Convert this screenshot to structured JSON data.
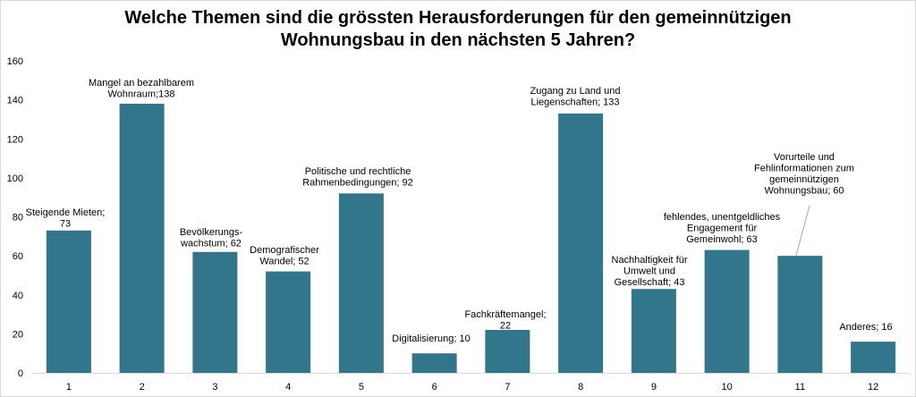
{
  "chart_data": {
    "type": "bar",
    "title": "Welche Themen sind die grössten Herausforderungen für den gemeinnützigen\nWohnungsbau in den nächsten 5 Jahren?",
    "categories": [
      "1",
      "2",
      "3",
      "4",
      "5",
      "6",
      "7",
      "8",
      "9",
      "10",
      "11",
      "12"
    ],
    "values": [
      73,
      138,
      62,
      52,
      92,
      10,
      22,
      133,
      43,
      63,
      60,
      16
    ],
    "data_labels": [
      [
        "Steigende Mieten;",
        "73"
      ],
      [
        "Mangel an bezahlbarem",
        "Wohnraum;138"
      ],
      [
        "Bevölkerungs-",
        "wachstum; 62"
      ],
      [
        "Demografischer",
        "Wandel; 52"
      ],
      [
        "Politische und rechtliche",
        "Rahmenbedingungen; 92"
      ],
      [
        "Digitalisierung;  10"
      ],
      [
        "Fachkräftemangel;",
        "22"
      ],
      [
        "Zugang zu Land und",
        "Liegenschaften; 133"
      ],
      [
        "Nachhaltigkeit für",
        "Umwelt und",
        "Gesellschaft; 43"
      ],
      [
        "fehlendes, unentgeldliches",
        "Engagement für",
        "Gemeinwohl; 63"
      ],
      [
        "Vorurteile und",
        "Fehlinformationen zum",
        "gemeinnützigen",
        "Wohnungsbau; 60"
      ],
      [
        "Anderes; 16"
      ]
    ],
    "y_ticks": [
      "0",
      "20",
      "40",
      "60",
      "80",
      "100",
      "120",
      "140",
      "160"
    ],
    "ylim": [
      0,
      160
    ],
    "grid": false,
    "bar_color": "#31768a",
    "axis_color": "#d9d9d9"
  }
}
